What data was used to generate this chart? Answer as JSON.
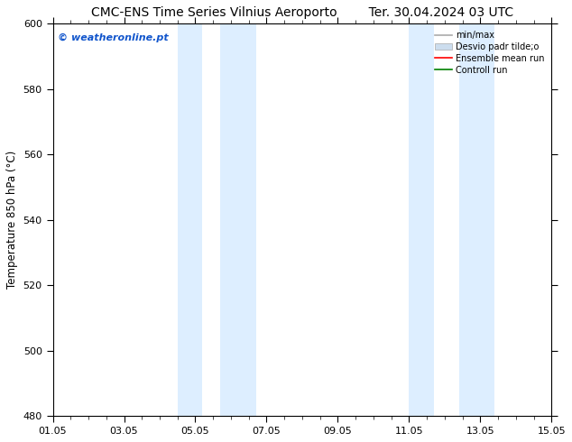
{
  "title": "CMC-ENS Time Series Vilnius Aeroporto",
  "title_right": "Ter. 30.04.2024 03 UTC",
  "ylabel": "Temperature 850 hPa (°C)",
  "ylim": [
    480,
    600
  ],
  "yticks": [
    480,
    500,
    520,
    540,
    560,
    580,
    600
  ],
  "xtick_labels": [
    "01.05",
    "03.05",
    "05.05",
    "07.05",
    "09.05",
    "11.05",
    "13.05",
    "15.05"
  ],
  "xtick_positions": [
    0,
    2,
    4,
    6,
    8,
    10,
    12,
    14
  ],
  "xlim": [
    0,
    14
  ],
  "shaded_bands": [
    {
      "xstart": 3.5,
      "xend": 4.2
    },
    {
      "xstart": 4.7,
      "xend": 5.7
    },
    {
      "xstart": 10.0,
      "xend": 10.7
    },
    {
      "xstart": 11.4,
      "xend": 12.4
    }
  ],
  "shaded_color": "#ddeeff",
  "watermark_text": "© weatheronline.pt",
  "watermark_color": "#1155cc",
  "legend_entries": [
    {
      "label": "min/max",
      "color": "#aaaaaa",
      "lw": 1.2
    },
    {
      "label": "Desvio padr tilde;o",
      "color": "#ccddee",
      "lw": 8
    },
    {
      "label": "Ensemble mean run",
      "color": "#ff0000",
      "lw": 1.2
    },
    {
      "label": "Controll run",
      "color": "#008000",
      "lw": 1.2
    }
  ],
  "background_color": "#ffffff",
  "title_fontsize": 10,
  "tick_fontsize": 8,
  "ylabel_fontsize": 8.5
}
